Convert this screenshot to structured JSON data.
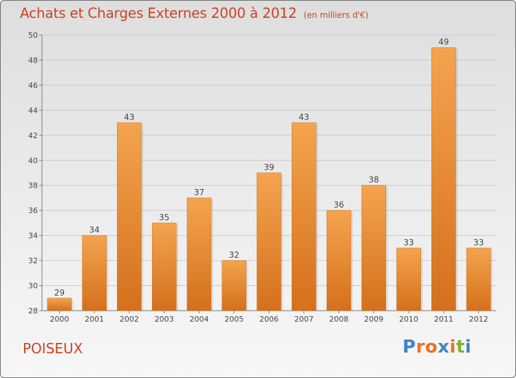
{
  "header": {
    "title": "Achats et Charges Externes 2000 à 2012",
    "unit": "(en milliers d'€)"
  },
  "footer": {
    "commune": "POISEUX",
    "logo_letters": [
      "P",
      "r",
      "o",
      "x",
      "i",
      "t",
      "i"
    ],
    "logo_colors": [
      "#3a86c8",
      "#e8741e",
      "#e8741e",
      "#3a86c8",
      "#e8741e",
      "#7ab32e",
      "#3a86c8"
    ]
  },
  "chart_data": {
    "type": "bar",
    "title": "Achats et Charges Externes 2000 à 2012",
    "categories": [
      "2000",
      "2001",
      "2002",
      "2003",
      "2004",
      "2005",
      "2006",
      "2007",
      "2008",
      "2009",
      "2010",
      "2011",
      "2012"
    ],
    "values": [
      29,
      34,
      43,
      35,
      37,
      32,
      39,
      43,
      36,
      38,
      33,
      49,
      33
    ],
    "ylim": [
      28,
      50
    ],
    "yticks": [
      28,
      30,
      32,
      34,
      36,
      38,
      40,
      42,
      44,
      46,
      48,
      50
    ],
    "grid": true,
    "bar_color_top": "#f4a44e",
    "bar_color_bottom": "#d5701c"
  }
}
